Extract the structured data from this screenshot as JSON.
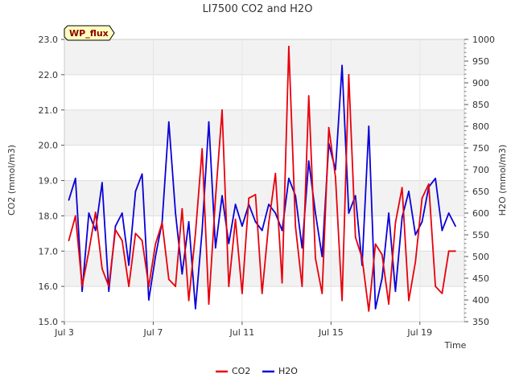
{
  "chart_data": {
    "type": "line",
    "title": "LI7500 CO2 and H2O",
    "xlabel": "Time",
    "ylabel_left": "CO2 (mmol/m3)",
    "ylabel_right": "H2O (mmol/m3)",
    "xlim_days": [
      3,
      21
    ],
    "ylim_left": [
      15.0,
      23.0
    ],
    "ylim_right": [
      350,
      1000
    ],
    "x_ticks": [
      {
        "day": 3,
        "label": "Jul 3"
      },
      {
        "day": 7,
        "label": "Jul 7"
      },
      {
        "day": 11,
        "label": "Jul 11"
      },
      {
        "day": 15,
        "label": "Jul 15"
      },
      {
        "day": 19,
        "label": "Jul 19"
      }
    ],
    "y_left_ticks": [
      "15.0",
      "16.0",
      "17.0",
      "18.0",
      "19.0",
      "20.0",
      "21.0",
      "22.0",
      "23.0"
    ],
    "y_right_ticks": [
      "350",
      "400",
      "450",
      "500",
      "550",
      "600",
      "650",
      "700",
      "750",
      "800",
      "850",
      "900",
      "950",
      "1000"
    ],
    "badge_label": "WP_flux",
    "grid": true,
    "series": [
      {
        "name": "CO2",
        "color": "#e8000b",
        "axis": "left",
        "x": [
          3.2,
          3.5,
          3.8,
          4.1,
          4.4,
          4.7,
          5.0,
          5.3,
          5.6,
          5.9,
          6.2,
          6.5,
          6.8,
          7.1,
          7.4,
          7.7,
          8.0,
          8.3,
          8.6,
          8.9,
          9.2,
          9.5,
          9.8,
          10.1,
          10.4,
          10.7,
          11.0,
          11.3,
          11.6,
          11.9,
          12.2,
          12.5,
          12.8,
          13.1,
          13.4,
          13.7,
          14.0,
          14.3,
          14.6,
          14.9,
          15.2,
          15.5,
          15.8,
          16.1,
          16.4,
          16.7,
          17.0,
          17.3,
          17.6,
          17.9,
          18.2,
          18.5,
          18.8,
          19.1,
          19.4,
          19.7,
          20.0,
          20.3,
          20.6
        ],
        "values": [
          17.3,
          18.0,
          16.0,
          17.0,
          18.1,
          16.5,
          16.0,
          17.6,
          17.3,
          16.0,
          17.5,
          17.3,
          16.0,
          17.2,
          17.8,
          16.2,
          16.0,
          18.2,
          15.6,
          17.5,
          19.9,
          15.5,
          18.5,
          21.0,
          16.0,
          17.9,
          15.8,
          18.5,
          18.6,
          15.8,
          17.8,
          19.2,
          16.1,
          22.8,
          17.7,
          16.0,
          21.4,
          16.8,
          15.8,
          20.5,
          19.1,
          15.6,
          22.0,
          17.4,
          16.8,
          15.3,
          17.2,
          16.9,
          15.5,
          17.8,
          18.8,
          15.6,
          16.7,
          18.5,
          18.9,
          16.0,
          15.8,
          17.0,
          17.0
        ]
      },
      {
        "name": "H2O",
        "color": "#0a00d8",
        "axis": "right",
        "x": [
          3.2,
          3.5,
          3.8,
          4.1,
          4.4,
          4.7,
          5.0,
          5.3,
          5.6,
          5.9,
          6.2,
          6.5,
          6.8,
          7.1,
          7.4,
          7.7,
          8.0,
          8.3,
          8.6,
          8.9,
          9.2,
          9.5,
          9.8,
          10.1,
          10.4,
          10.7,
          11.0,
          11.3,
          11.6,
          11.9,
          12.2,
          12.5,
          12.8,
          13.1,
          13.4,
          13.7,
          14.0,
          14.3,
          14.6,
          14.9,
          15.2,
          15.5,
          15.8,
          16.1,
          16.4,
          16.7,
          17.0,
          17.3,
          17.6,
          17.9,
          18.2,
          18.5,
          18.8,
          19.1,
          19.4,
          19.7,
          20.0,
          20.3,
          20.6
        ],
        "values": [
          630,
          680,
          420,
          600,
          560,
          670,
          420,
          570,
          600,
          480,
          650,
          690,
          400,
          500,
          580,
          810,
          600,
          460,
          580,
          380,
          560,
          810,
          520,
          640,
          530,
          620,
          570,
          620,
          580,
          560,
          620,
          600,
          560,
          680,
          640,
          520,
          720,
          600,
          500,
          760,
          700,
          940,
          600,
          640,
          480,
          800,
          380,
          450,
          600,
          420,
          590,
          650,
          550,
          580,
          660,
          680,
          560,
          600,
          570
        ]
      }
    ]
  }
}
